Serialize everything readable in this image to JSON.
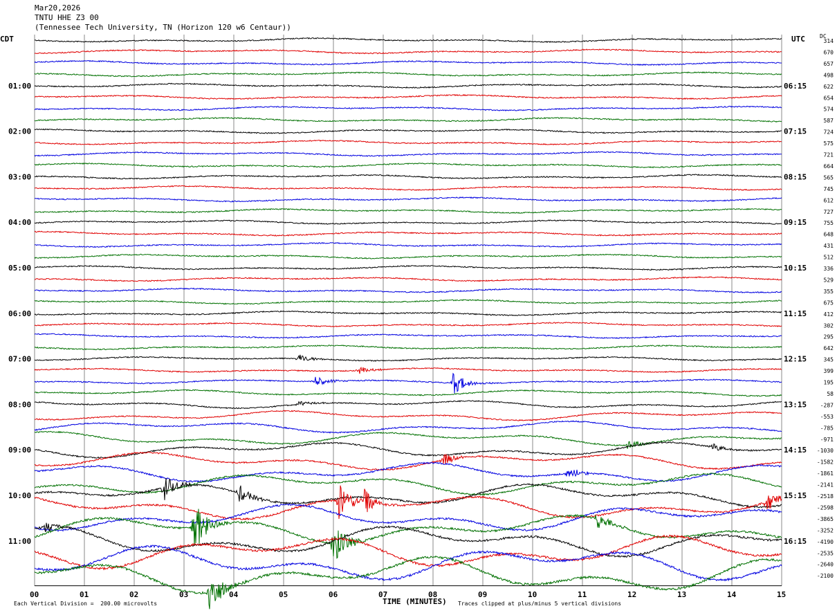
{
  "header": {
    "date": "Mar20,2026",
    "station": "TNTU HHE Z3 00",
    "location": "(Tennessee Tech University, TN (Horizon 120 w6 Centaur))"
  },
  "left_label": "CDT",
  "right_label": "UTC",
  "dc_label": "DC",
  "footer": {
    "scale": "Each Vertical Division =  200.00 microvolts",
    "axis_title": "TIME (MINUTES)",
    "clip_note": "Traces clipped at plus/minus 5 vertical divisions"
  },
  "colors": {
    "cycle": [
      "#000000",
      "#e00000",
      "#0000e0",
      "#007000"
    ]
  },
  "chart_data": {
    "type": "line",
    "title": "TNTU HHE Z3 00",
    "xlabel": "TIME (MINUTES)",
    "xlim": [
      0,
      15
    ],
    "x_ticks": [
      "00",
      "01",
      "02",
      "03",
      "04",
      "05",
      "06",
      "07",
      "08",
      "09",
      "10",
      "11",
      "12",
      "13",
      "14",
      "15"
    ],
    "traces_per_hour": 4,
    "trace_minutes": 15,
    "left_hour_labels": [
      "01:00",
      "02:00",
      "03:00",
      "04:00",
      "05:00",
      "06:00",
      "07:00",
      "08:00",
      "09:00",
      "10:00",
      "11:00"
    ],
    "right_hour_labels": [
      "06:15",
      "07:15",
      "08:15",
      "09:15",
      "10:15",
      "11:15",
      "12:15",
      "13:15",
      "14:15",
      "15:15",
      "16:15"
    ],
    "dc_offsets": [
      314,
      670,
      657,
      498,
      622,
      654,
      574,
      587,
      724,
      575,
      721,
      664,
      565,
      745,
      612,
      727,
      755,
      648,
      431,
      512,
      336,
      529,
      355,
      675,
      412,
      302,
      295,
      642,
      345,
      399,
      195,
      58,
      -287,
      -553,
      -785,
      -971,
      -1030,
      -1582,
      -1861,
      -2141,
      -2518,
      -2598,
      -3865,
      -3252,
      -4190,
      -2535,
      -2640,
      -2100
    ],
    "events": [
      {
        "trace": 28,
        "minute": 5.3,
        "amp": 7
      },
      {
        "trace": 29,
        "minute": 6.5,
        "amp": 6
      },
      {
        "trace": 30,
        "minute": 5.6,
        "amp": 10
      },
      {
        "trace": 30,
        "minute": 8.4,
        "amp": 18
      },
      {
        "trace": 32,
        "minute": 5.3,
        "amp": 5
      },
      {
        "trace": 35,
        "minute": 11.9,
        "amp": 8
      },
      {
        "trace": 36,
        "minute": 13.6,
        "amp": 8
      },
      {
        "trace": 37,
        "minute": 8.2,
        "amp": 10
      },
      {
        "trace": 38,
        "minute": 10.7,
        "amp": 10
      },
      {
        "trace": 40,
        "minute": 2.6,
        "amp": 18
      },
      {
        "trace": 40,
        "minute": 4.1,
        "amp": 14
      },
      {
        "trace": 41,
        "minute": 6.1,
        "amp": 32
      },
      {
        "trace": 41,
        "minute": 6.6,
        "amp": 20
      },
      {
        "trace": 41,
        "minute": 14.7,
        "amp": 16
      },
      {
        "trace": 43,
        "minute": 3.2,
        "amp": 45
      },
      {
        "trace": 43,
        "minute": 6.0,
        "amp": 35
      },
      {
        "trace": 43,
        "minute": 11.3,
        "amp": 14
      },
      {
        "trace": 44,
        "minute": 0.2,
        "amp": 10
      },
      {
        "trace": 47,
        "minute": 3.5,
        "amp": 35
      }
    ]
  }
}
